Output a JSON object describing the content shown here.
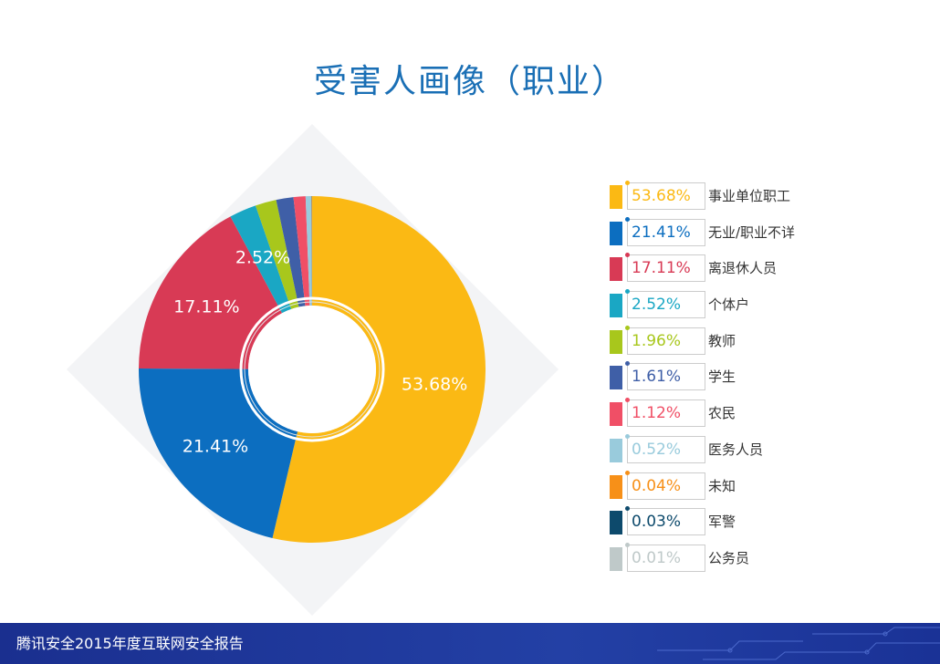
{
  "title": "受害人画像（职业）",
  "footer": "腾讯安全2015年度互联网安全报告",
  "chart_data": {
    "type": "pie",
    "donut": true,
    "title": "受害人画像（职业）",
    "categories": [
      "事业单位职工",
      "无业/职业不详",
      "离退休人员",
      "个体户",
      "教师",
      "学生",
      "农民",
      "医务人员",
      "未知",
      "军警",
      "公务员"
    ],
    "values": [
      53.68,
      21.41,
      17.11,
      2.52,
      1.96,
      1.61,
      1.12,
      0.52,
      0.04,
      0.03,
      0.01
    ],
    "value_labels": [
      "53.68%",
      "21.41%",
      "17.11%",
      "2.52%",
      "1.96%",
      "1.61%",
      "1.12%",
      "0.52%",
      "0.04%",
      "0.03%",
      "0.01%"
    ],
    "colors": [
      "#fbb914",
      "#0c6ec0",
      "#d83a55",
      "#1aa7c4",
      "#a8c71c",
      "#3f5fa7",
      "#f04f66",
      "#99cbdc",
      "#f79018",
      "#0d4a6c",
      "#bfc9c9"
    ],
    "legend_position": "right",
    "slice_labels_shown": [
      "53.68%",
      "21.41%",
      "17.11%",
      "2.52%"
    ]
  }
}
